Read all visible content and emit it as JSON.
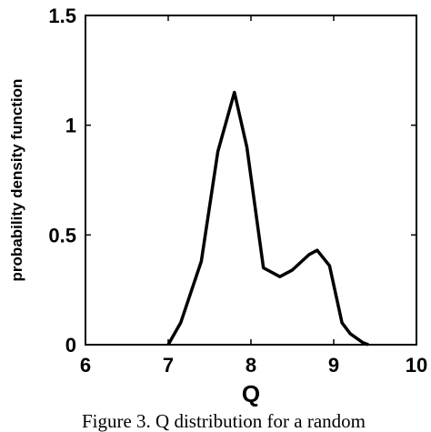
{
  "chart_data": {
    "type": "line",
    "xlabel": "Q",
    "ylabel": "probability density function",
    "xlim": [
      6,
      10
    ],
    "ylim": [
      0,
      1.5
    ],
    "x_ticks": [
      "6",
      "7",
      "8",
      "9",
      "10"
    ],
    "y_ticks": [
      "0",
      "0.5",
      "1",
      "1.5"
    ],
    "grid": false,
    "series": [
      {
        "x": [
          7.0,
          7.15,
          7.4,
          7.6,
          7.8,
          7.95,
          8.15,
          8.35,
          8.5,
          8.7,
          8.8,
          8.95,
          9.1,
          9.2,
          9.35,
          9.42
        ],
        "y": [
          0.0,
          0.1,
          0.38,
          0.88,
          1.15,
          0.9,
          0.35,
          0.31,
          0.34,
          0.41,
          0.43,
          0.36,
          0.1,
          0.05,
          0.01,
          0.0
        ]
      }
    ]
  },
  "caption": "Figure 3. Q distribution for a random"
}
